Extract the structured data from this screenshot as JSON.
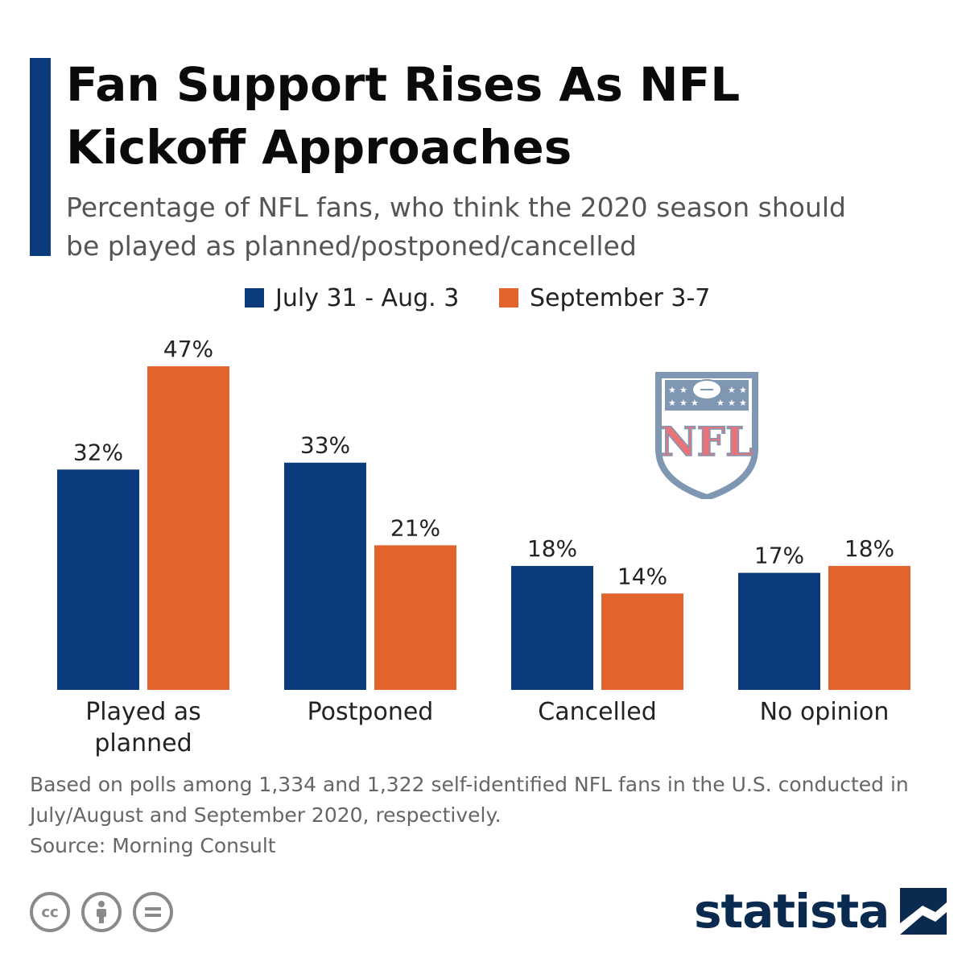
{
  "header": {
    "title": "Fan Support Rises As NFL Kickoff Approaches",
    "subtitle": "Percentage of NFL fans, who think the 2020 season should be played as planned/postponed/cancelled"
  },
  "colors": {
    "accent": "#0b3a7d",
    "series1": "#0b3a7d",
    "series2": "#e0642c",
    "logo_red": "#e8747a",
    "logo_blue": "#7f97b3"
  },
  "chart_data": {
    "type": "bar",
    "categories": [
      "Played as planned",
      "Postponed",
      "Cancelled",
      "No opinion"
    ],
    "series": [
      {
        "name": "July 31 - Aug. 3",
        "values": [
          32,
          33,
          18,
          17
        ],
        "color": "#0b3a7d"
      },
      {
        "name": "September 3-7",
        "values": [
          47,
          21,
          14,
          18
        ],
        "color": "#e0642c"
      }
    ],
    "value_suffix": "%",
    "title": "",
    "xlabel": "",
    "ylabel": "",
    "ylim": [
      0,
      47
    ],
    "grid": false,
    "legend": "top-center"
  },
  "footnote": "Based on polls among 1,334 and 1,322 self-identified NFL fans in the U.S. conducted in July/August and September 2020, respectively.",
  "source": "Source: Morning Consult",
  "logo": {
    "text": "NFL"
  },
  "license_icons": [
    "cc-icon",
    "attribution-icon",
    "no-derivatives-icon"
  ],
  "brand": {
    "name": "statista"
  }
}
